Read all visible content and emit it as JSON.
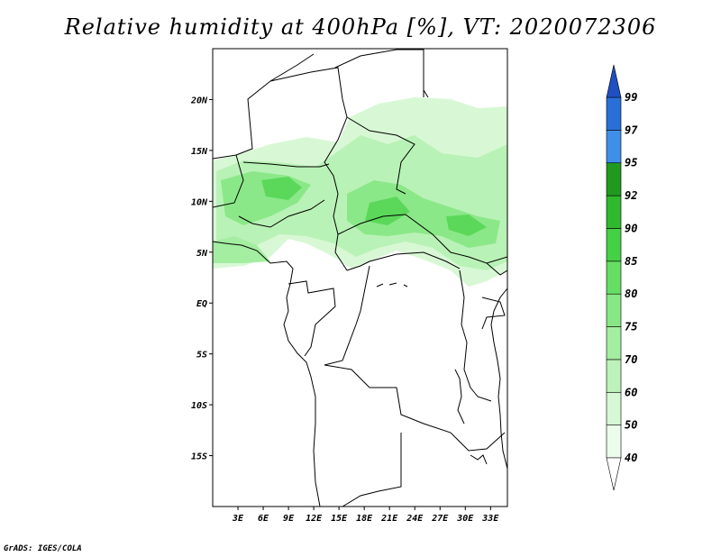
{
  "title": "Relative humidity at 400hPa [%], VT: 2020072306",
  "credit": "GrADS: IGES/COLA",
  "map": {
    "lat_range": [
      -20,
      25
    ],
    "lon_range": [
      0,
      35
    ],
    "lat_ticks": [
      {
        "value": 20,
        "label": "20N"
      },
      {
        "value": 15,
        "label": "15N"
      },
      {
        "value": 10,
        "label": "10N"
      },
      {
        "value": 5,
        "label": "5N"
      },
      {
        "value": 0,
        "label": "EQ"
      },
      {
        "value": -5,
        "label": "5S"
      },
      {
        "value": -10,
        "label": "10S"
      },
      {
        "value": -15,
        "label": "15S"
      }
    ],
    "lon_ticks": [
      {
        "value": 3,
        "label": "3E"
      },
      {
        "value": 6,
        "label": "6E"
      },
      {
        "value": 9,
        "label": "9E"
      },
      {
        "value": 12,
        "label": "12E"
      },
      {
        "value": 15,
        "label": "15E"
      },
      {
        "value": 18,
        "label": "18E"
      },
      {
        "value": 21,
        "label": "21E"
      },
      {
        "value": 24,
        "label": "24E"
      },
      {
        "value": 27,
        "label": "27E"
      },
      {
        "value": 30,
        "label": "30E"
      },
      {
        "value": 33,
        "label": "33E"
      }
    ]
  },
  "legend": {
    "levels": [
      "40",
      "50",
      "60",
      "70",
      "75",
      "80",
      "85",
      "90",
      "92",
      "95",
      "97",
      "99"
    ],
    "colors": [
      "#ecfceb",
      "#d6f8d4",
      "#bdf3ba",
      "#a3eea0",
      "#86e784",
      "#66de64",
      "#46d045",
      "#30b82f",
      "#1f9a1f",
      "#3f8fe8",
      "#2a6fd8",
      "#1f4fc0"
    ]
  }
}
